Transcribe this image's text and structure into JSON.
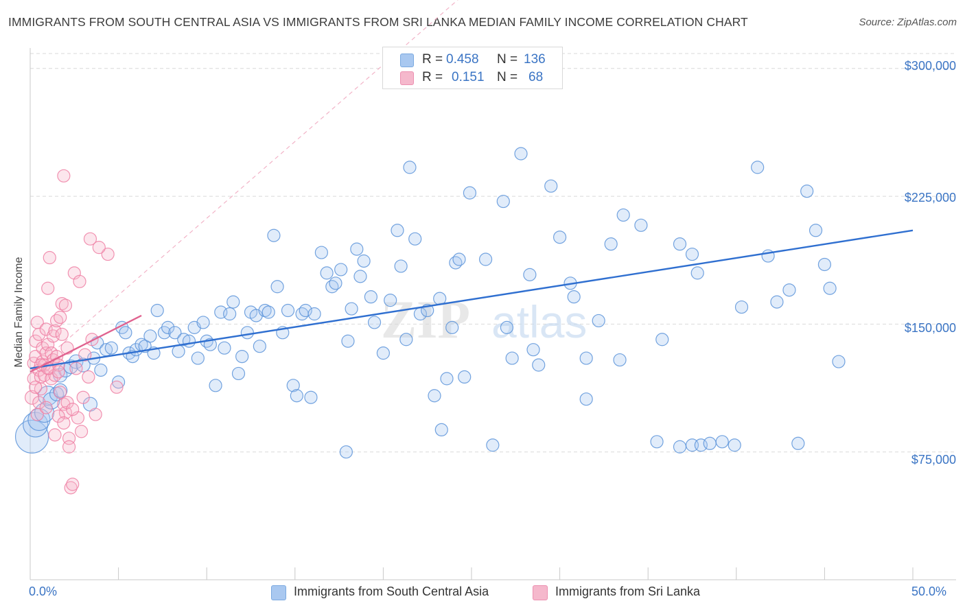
{
  "title": "IMMIGRANTS FROM SOUTH CENTRAL ASIA VS IMMIGRANTS FROM SRI LANKA MEDIAN FAMILY INCOME CORRELATION CHART",
  "source": "Source: ZipAtlas.com",
  "watermark": {
    "zip": "ZIP",
    "atlas": "atlas"
  },
  "legend": {
    "r_label": "R =",
    "n_label": "N =",
    "rows": [
      {
        "r": "0.458",
        "n": "136",
        "color": "#a9c8f0"
      },
      {
        "r": "0.151",
        "n": "68",
        "color": "#f5b8cc"
      }
    ]
  },
  "bottom_legend": [
    {
      "label": "Immigrants from South Central Asia",
      "color": "#a9c8f0"
    },
    {
      "label": "Immigrants from Sri Lanka",
      "color": "#f5b8cc"
    }
  ],
  "colors": {
    "blue": "#5b93d9",
    "blue_line": "#2f6fd0",
    "pink": "#ef7fa3",
    "pink_line": "#e0628f",
    "axis_text": "#3a74c4"
  },
  "chart_data": {
    "type": "scatter",
    "title": "IMMIGRANTS FROM SOUTH CENTRAL ASIA VS IMMIGRANTS FROM SRI LANKA MEDIAN FAMILY INCOME CORRELATION CHART",
    "xlabel": "",
    "ylabel": "Median Family Income",
    "xlim": [
      0,
      50
    ],
    "ylim": [
      0,
      312000
    ],
    "x_tick_labels": [
      "0.0%",
      "50.0%"
    ],
    "y_ticks": [
      75000,
      150000,
      225000,
      300000
    ],
    "y_tick_labels": [
      "$75,000",
      "$150,000",
      "$225,000",
      "$300,000"
    ],
    "grid": true,
    "series": [
      {
        "name": "Immigrants from South Central Asia",
        "color": "#5b93d9",
        "trend": {
          "x": [
            0,
            50
          ],
          "y": [
            124000,
            205000
          ]
        },
        "points": [
          [
            0.1,
            84000,
            24
          ],
          [
            0.3,
            91000,
            18
          ],
          [
            0.5,
            94000,
            16
          ],
          [
            0.8,
            98000,
            14
          ],
          [
            1.0,
            108000,
            14
          ],
          [
            1.2,
            105000,
            12
          ],
          [
            1.5,
            109000,
            10
          ],
          [
            1.7,
            111000,
            10
          ],
          [
            1.7,
            120000,
            10
          ],
          [
            2.0,
            123000,
            10
          ],
          [
            2.3,
            125000,
            10
          ],
          [
            2.6,
            128000,
            10
          ],
          [
            3.0,
            126000,
            10
          ],
          [
            3.4,
            103000,
            10
          ],
          [
            3.6,
            130000,
            9
          ],
          [
            3.8,
            139000,
            9
          ],
          [
            4.0,
            123000,
            9
          ],
          [
            4.3,
            135000,
            9
          ],
          [
            4.6,
            136000,
            9
          ],
          [
            5.0,
            116000,
            9
          ],
          [
            5.2,
            148000,
            9
          ],
          [
            5.4,
            145000,
            9
          ],
          [
            5.6,
            133000,
            9
          ],
          [
            5.8,
            131000,
            9
          ],
          [
            6.0,
            135000,
            9
          ],
          [
            6.3,
            138000,
            9
          ],
          [
            6.5,
            137000,
            9
          ],
          [
            6.8,
            143000,
            9
          ],
          [
            7.0,
            133000,
            9
          ],
          [
            7.2,
            158000,
            9
          ],
          [
            7.6,
            145000,
            9
          ],
          [
            7.8,
            148000,
            9
          ],
          [
            8.2,
            145000,
            9
          ],
          [
            8.4,
            134000,
            9
          ],
          [
            8.7,
            141000,
            9
          ],
          [
            9.0,
            140000,
            9
          ],
          [
            9.3,
            148000,
            9
          ],
          [
            9.5,
            130000,
            9
          ],
          [
            9.8,
            151000,
            9
          ],
          [
            10.0,
            140000,
            9
          ],
          [
            10.2,
            138000,
            9
          ],
          [
            10.5,
            114000,
            9
          ],
          [
            10.8,
            157000,
            9
          ],
          [
            11.0,
            136000,
            9
          ],
          [
            11.3,
            156000,
            9
          ],
          [
            11.5,
            163000,
            9
          ],
          [
            11.8,
            121000,
            9
          ],
          [
            12.0,
            131000,
            9
          ],
          [
            12.3,
            145000,
            9
          ],
          [
            12.5,
            157000,
            9
          ],
          [
            12.8,
            155000,
            9
          ],
          [
            13.0,
            137000,
            9
          ],
          [
            13.3,
            158000,
            9
          ],
          [
            13.5,
            157000,
            9
          ],
          [
            13.8,
            202000,
            9
          ],
          [
            14.0,
            172000,
            9
          ],
          [
            14.3,
            145000,
            9
          ],
          [
            14.6,
            158000,
            9
          ],
          [
            14.9,
            114000,
            9
          ],
          [
            15.1,
            108000,
            9
          ],
          [
            15.4,
            156000,
            9
          ],
          [
            15.6,
            158000,
            9
          ],
          [
            15.9,
            107000,
            9
          ],
          [
            16.1,
            156000,
            9
          ],
          [
            16.5,
            192000,
            9
          ],
          [
            16.8,
            180000,
            9
          ],
          [
            17.1,
            172000,
            9
          ],
          [
            17.3,
            174000,
            9
          ],
          [
            17.6,
            182000,
            9
          ],
          [
            18.0,
            140000,
            9
          ],
          [
            18.2,
            159000,
            9
          ],
          [
            18.5,
            194000,
            9
          ],
          [
            18.7,
            178000,
            9
          ],
          [
            18.9,
            187000,
            9
          ],
          [
            17.9,
            75000,
            9
          ],
          [
            19.3,
            166000,
            9
          ],
          [
            19.5,
            151000,
            9
          ],
          [
            20.0,
            133000,
            9
          ],
          [
            20.4,
            164000,
            9
          ],
          [
            20.8,
            205000,
            9
          ],
          [
            21.0,
            184000,
            9
          ],
          [
            21.3,
            141000,
            9
          ],
          [
            21.5,
            242000,
            9
          ],
          [
            21.8,
            200000,
            9
          ],
          [
            22.1,
            156000,
            9
          ],
          [
            22.5,
            158000,
            9
          ],
          [
            22.9,
            108000,
            9
          ],
          [
            23.2,
            165000,
            9
          ],
          [
            23.3,
            88000,
            9
          ],
          [
            23.6,
            118000,
            9
          ],
          [
            23.9,
            148000,
            9
          ],
          [
            24.1,
            186000,
            9
          ],
          [
            24.3,
            188000,
            9
          ],
          [
            24.6,
            119000,
            9
          ],
          [
            24.9,
            227000,
            9
          ],
          [
            25.8,
            188000,
            9
          ],
          [
            26.2,
            79000,
            9
          ],
          [
            26.8,
            222000,
            9
          ],
          [
            27.0,
            148000,
            9
          ],
          [
            27.3,
            130000,
            9
          ],
          [
            27.8,
            250000,
            9
          ],
          [
            28.3,
            179000,
            9
          ],
          [
            28.5,
            135000,
            9
          ],
          [
            28.8,
            126000,
            9
          ],
          [
            29.5,
            231000,
            9
          ],
          [
            30.0,
            201000,
            9
          ],
          [
            30.6,
            174000,
            9
          ],
          [
            30.8,
            166000,
            9
          ],
          [
            31.5,
            106000,
            9
          ],
          [
            31.5,
            130000,
            9
          ],
          [
            32.2,
            152000,
            9
          ],
          [
            32.9,
            197000,
            9
          ],
          [
            33.4,
            129000,
            9
          ],
          [
            33.6,
            214000,
            9
          ],
          [
            34.6,
            208000,
            9
          ],
          [
            35.8,
            141000,
            9
          ],
          [
            36.8,
            197000,
            9
          ],
          [
            37.5,
            191000,
            9
          ],
          [
            37.8,
            180000,
            9
          ],
          [
            35.5,
            81000,
            9
          ],
          [
            36.8,
            78000,
            9
          ],
          [
            37.5,
            79000,
            9
          ],
          [
            38.0,
            79000,
            9
          ],
          [
            38.5,
            80000,
            9
          ],
          [
            39.2,
            81000,
            9
          ],
          [
            39.9,
            79000,
            9
          ],
          [
            40.3,
            160000,
            9
          ],
          [
            41.2,
            242000,
            9
          ],
          [
            41.8,
            190000,
            9
          ],
          [
            42.3,
            163000,
            9
          ],
          [
            43.0,
            170000,
            9
          ],
          [
            43.5,
            80000,
            9
          ],
          [
            44.0,
            228000,
            9
          ],
          [
            44.5,
            205000,
            9
          ],
          [
            45.0,
            185000,
            9
          ],
          [
            45.3,
            171000,
            9
          ],
          [
            45.8,
            128000,
            9
          ]
        ]
      },
      {
        "name": "Immigrants from Sri Lanka",
        "color": "#ef7fa3",
        "trend": {
          "x": [
            0,
            6.3
          ],
          "y": [
            122000,
            155000
          ]
        },
        "points": [
          [
            0.1,
            107000,
            10
          ],
          [
            0.2,
            118000,
            9
          ],
          [
            0.2,
            127000,
            9
          ],
          [
            0.3,
            131000,
            9
          ],
          [
            0.3,
            140000,
            9
          ],
          [
            0.4,
            151000,
            9
          ],
          [
            0.5,
            144000,
            9
          ],
          [
            0.5,
            123000,
            9
          ],
          [
            0.6,
            119000,
            9
          ],
          [
            0.6,
            112000,
            9
          ],
          [
            0.7,
            136000,
            9
          ],
          [
            0.7,
            128000,
            9
          ],
          [
            0.8,
            120000,
            9
          ],
          [
            0.8,
            126000,
            9
          ],
          [
            0.9,
            133000,
            9
          ],
          [
            0.9,
            147000,
            9
          ],
          [
            1.0,
            138000,
            9
          ],
          [
            1.0,
            171000,
            9
          ],
          [
            1.1,
            189000,
            9
          ],
          [
            1.1,
            124000,
            9
          ],
          [
            1.2,
            133000,
            9
          ],
          [
            1.2,
            118000,
            9
          ],
          [
            1.3,
            143000,
            9
          ],
          [
            1.3,
            129000,
            9
          ],
          [
            1.4,
            120000,
            9
          ],
          [
            1.4,
            146000,
            9
          ],
          [
            1.5,
            152000,
            9
          ],
          [
            1.5,
            131000,
            9
          ],
          [
            1.6,
            126000,
            9
          ],
          [
            1.6,
            122000,
            9
          ],
          [
            1.7,
            154000,
            9
          ],
          [
            1.7,
            110000,
            9
          ],
          [
            1.8,
            162000,
            9
          ],
          [
            1.8,
            144000,
            9
          ],
          [
            1.9,
            237000,
            9
          ],
          [
            1.9,
            103000,
            9
          ],
          [
            2.0,
            98000,
            9
          ],
          [
            2.0,
            161000,
            9
          ],
          [
            2.1,
            136000,
            9
          ],
          [
            2.2,
            83000,
            9
          ],
          [
            2.2,
            78000,
            9
          ],
          [
            2.3,
            54000,
            9
          ],
          [
            2.4,
            56000,
            9
          ],
          [
            2.5,
            180000,
            9
          ],
          [
            2.6,
            124000,
            9
          ],
          [
            2.7,
            95000,
            9
          ],
          [
            2.8,
            175000,
            9
          ],
          [
            2.9,
            87000,
            9
          ],
          [
            3.0,
            107000,
            9
          ],
          [
            3.1,
            132000,
            9
          ],
          [
            3.3,
            119000,
            9
          ],
          [
            3.4,
            200000,
            9
          ],
          [
            3.5,
            141000,
            9
          ],
          [
            3.7,
            97000,
            9
          ],
          [
            4.4,
            191000,
            9
          ],
          [
            4.9,
            113000,
            9
          ],
          [
            0.4,
            97000,
            9
          ],
          [
            0.5,
            104000,
            9
          ],
          [
            0.9,
            101000,
            9
          ],
          [
            1.4,
            85000,
            9
          ],
          [
            1.6,
            96000,
            9
          ],
          [
            1.9,
            92000,
            9
          ],
          [
            2.1,
            104000,
            9
          ],
          [
            2.4,
            100000,
            9
          ],
          [
            0.3,
            113000,
            9
          ],
          [
            0.6,
            126000,
            9
          ],
          [
            1.0,
            124000,
            9
          ],
          [
            3.9,
            195000,
            9
          ]
        ]
      }
    ]
  }
}
